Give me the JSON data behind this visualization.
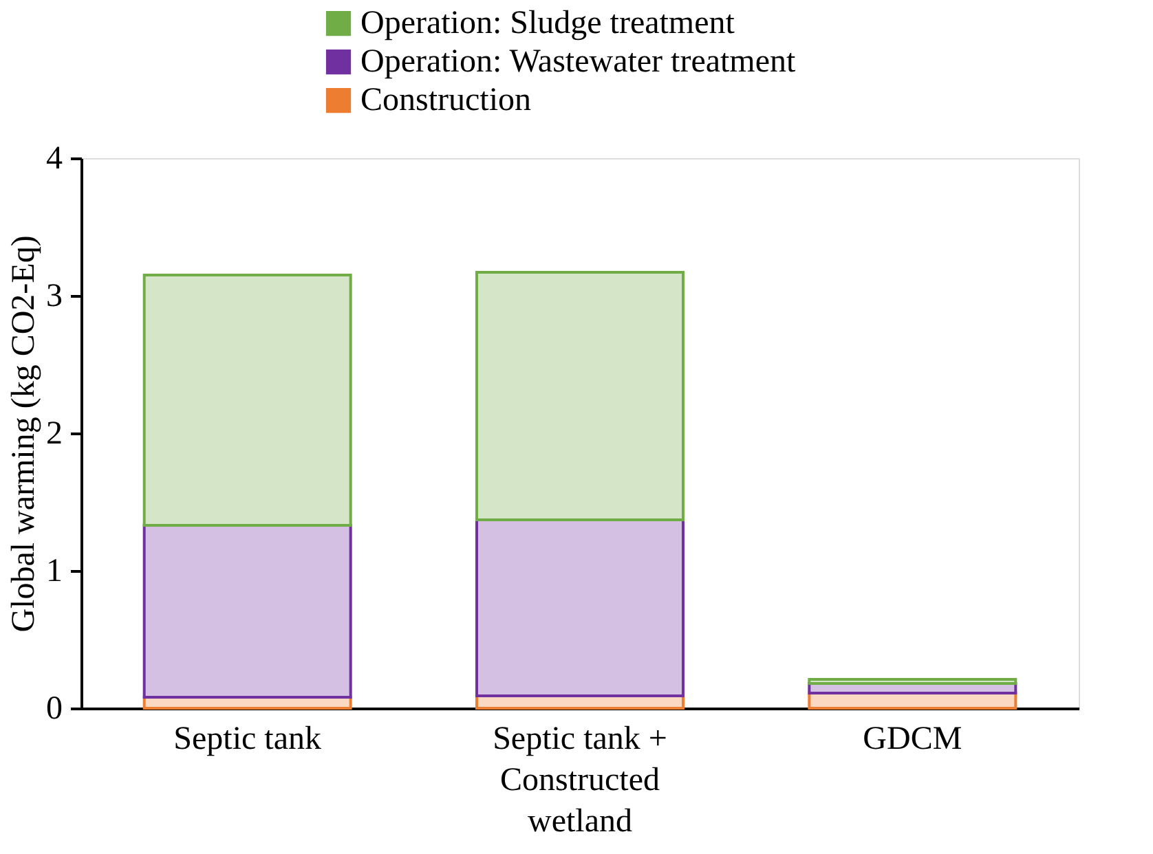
{
  "chart_data": {
    "type": "bar",
    "stacked": true,
    "ylabel": "Global warming (kg CO2-Eq)",
    "categories": [
      "Septic tank",
      "Septic tank +\nConstructed\nwetland",
      "GDCM"
    ],
    "series": [
      {
        "name": "Construction",
        "color": "#ed7d31",
        "values": [
          0.08,
          0.09,
          0.11
        ]
      },
      {
        "name": "Operation: Wastewater treatment",
        "color": "#7030a0",
        "values": [
          1.25,
          1.28,
          0.07
        ]
      },
      {
        "name": "Operation: Sludge treatment",
        "color": "#70ad47",
        "values": [
          1.82,
          1.8,
          0.03
        ]
      }
    ],
    "ylim": [
      0,
      4
    ],
    "yticks": [
      0,
      1,
      2,
      3,
      4
    ],
    "grid": false,
    "legend": "top"
  }
}
